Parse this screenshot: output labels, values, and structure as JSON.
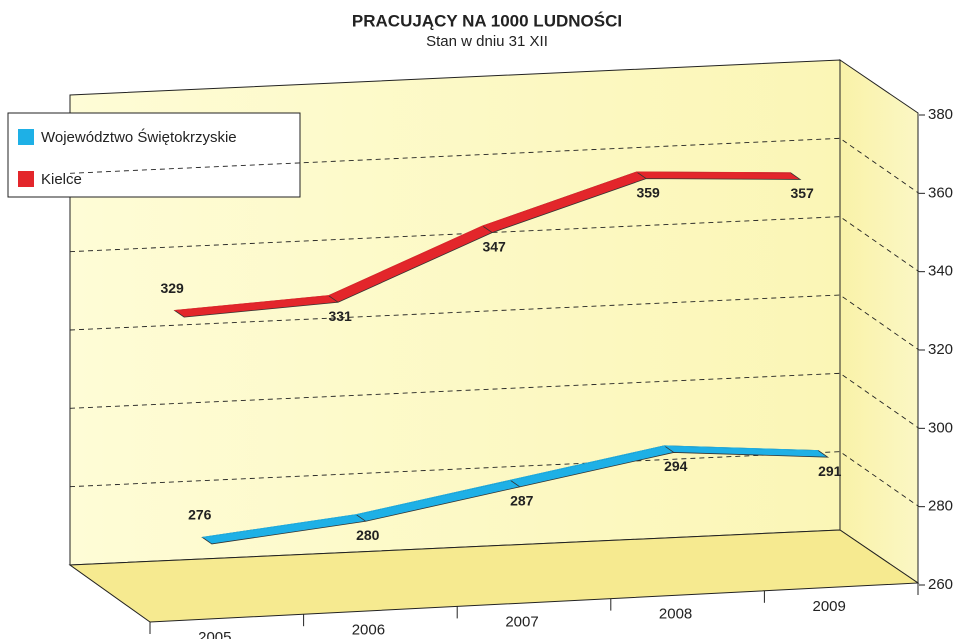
{
  "chart_data": {
    "type": "line3d",
    "title": "PRACUJĄCY NA 1000 LUDNOŚCI",
    "subtitle": "Stan w dniu 31 XII",
    "categories": [
      "2005",
      "2006",
      "2007",
      "2008",
      "2009"
    ],
    "series": [
      {
        "name": "Województwo Świętokrzyskie",
        "color": "#1eb0e6",
        "values": [
          276,
          280,
          287,
          294,
          291
        ]
      },
      {
        "name": "Kielce",
        "color": "#e3262b",
        "values": [
          329,
          331,
          347,
          359,
          357
        ]
      }
    ],
    "ylim": [
      260,
      380
    ],
    "yticks": [
      260,
      280,
      300,
      320,
      340,
      360,
      380
    ],
    "grid": true,
    "legend": "top-left"
  }
}
